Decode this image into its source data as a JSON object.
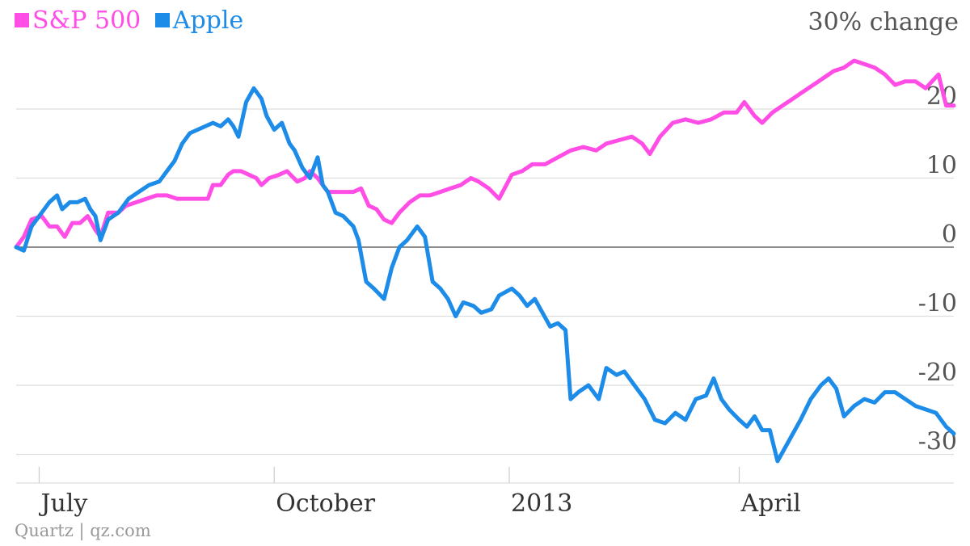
{
  "colors": {
    "sp500": "#ff4de6",
    "apple": "#1c8ce8",
    "grid": "#dddddd",
    "zero_line": "#666666",
    "tick_text": "#555555",
    "source_text": "#999999"
  },
  "source": "Quartz | qz.com",
  "chart_data": {
    "type": "line",
    "title": "",
    "ylabel": "30% change",
    "xlabel": "",
    "ylim": [
      -32,
      30
    ],
    "yticks": [
      {
        "value": 20,
        "label": "20"
      },
      {
        "value": 10,
        "label": "10"
      },
      {
        "value": 0,
        "label": "0"
      },
      {
        "value": -10,
        "label": "-10"
      },
      {
        "value": -20,
        "label": "-20"
      },
      {
        "value": -30,
        "label": "-30"
      }
    ],
    "xlim": [
      "2012-06-22",
      "2013-06-24"
    ],
    "xticks": [
      {
        "date": "2012-07-01",
        "label": "July"
      },
      {
        "date": "2012-10-01",
        "label": "October"
      },
      {
        "date": "2013-01-01",
        "label": "2013"
      },
      {
        "date": "2013-04-01",
        "label": "April"
      }
    ],
    "grid": true,
    "legend_position": "top-left",
    "series": [
      {
        "name": "S&P 500",
        "color": "#ff4de6",
        "points": [
          [
            "2012-06-22",
            0
          ],
          [
            "2012-06-25",
            1.5
          ],
          [
            "2012-06-28",
            4
          ],
          [
            "2012-07-02",
            4.5
          ],
          [
            "2012-07-05",
            3
          ],
          [
            "2012-07-08",
            3
          ],
          [
            "2012-07-11",
            1.5
          ],
          [
            "2012-07-14",
            3.5
          ],
          [
            "2012-07-17",
            3.5
          ],
          [
            "2012-07-20",
            4.5
          ],
          [
            "2012-07-23",
            2.5
          ],
          [
            "2012-07-25",
            1.5
          ],
          [
            "2012-07-28",
            5
          ],
          [
            "2012-08-01",
            5
          ],
          [
            "2012-08-04",
            6
          ],
          [
            "2012-08-08",
            6.5
          ],
          [
            "2012-08-12",
            7
          ],
          [
            "2012-08-16",
            7.5
          ],
          [
            "2012-08-20",
            7.5
          ],
          [
            "2012-08-24",
            7
          ],
          [
            "2012-08-28",
            7
          ],
          [
            "2012-09-01",
            7
          ],
          [
            "2012-09-05",
            7
          ],
          [
            "2012-09-07",
            9
          ],
          [
            "2012-09-10",
            9
          ],
          [
            "2012-09-13",
            10.5
          ],
          [
            "2012-09-15",
            11
          ],
          [
            "2012-09-18",
            11
          ],
          [
            "2012-09-21",
            10.5
          ],
          [
            "2012-09-24",
            10
          ],
          [
            "2012-09-26",
            9
          ],
          [
            "2012-09-29",
            10
          ],
          [
            "2012-10-03",
            10.5
          ],
          [
            "2012-10-06",
            11
          ],
          [
            "2012-10-10",
            9.5
          ],
          [
            "2012-10-13",
            10
          ],
          [
            "2012-10-15",
            11
          ],
          [
            "2012-10-18",
            10
          ],
          [
            "2012-10-20",
            9
          ],
          [
            "2012-10-22",
            8
          ],
          [
            "2012-10-25",
            8
          ],
          [
            "2012-10-28",
            8
          ],
          [
            "2012-11-01",
            8
          ],
          [
            "2012-11-04",
            8.5
          ],
          [
            "2012-11-07",
            6
          ],
          [
            "2012-11-10",
            5.5
          ],
          [
            "2012-11-13",
            4
          ],
          [
            "2012-11-16",
            3.5
          ],
          [
            "2012-11-19",
            5
          ],
          [
            "2012-11-23",
            6.5
          ],
          [
            "2012-11-27",
            7.5
          ],
          [
            "2012-12-01",
            7.5
          ],
          [
            "2012-12-05",
            8
          ],
          [
            "2012-12-09",
            8.5
          ],
          [
            "2012-12-13",
            9
          ],
          [
            "2012-12-17",
            10
          ],
          [
            "2012-12-20",
            9.5
          ],
          [
            "2012-12-24",
            8.5
          ],
          [
            "2012-12-28",
            7
          ],
          [
            "2013-01-02",
            10.5
          ],
          [
            "2013-01-06",
            11
          ],
          [
            "2013-01-10",
            12
          ],
          [
            "2013-01-15",
            12
          ],
          [
            "2013-01-20",
            13
          ],
          [
            "2013-01-25",
            14
          ],
          [
            "2013-01-30",
            14.5
          ],
          [
            "2013-02-04",
            14
          ],
          [
            "2013-02-08",
            15
          ],
          [
            "2013-02-13",
            15.5
          ],
          [
            "2013-02-18",
            16
          ],
          [
            "2013-02-22",
            15
          ],
          [
            "2013-02-25",
            13.5
          ],
          [
            "2013-03-01",
            16
          ],
          [
            "2013-03-06",
            18
          ],
          [
            "2013-03-11",
            18.5
          ],
          [
            "2013-03-16",
            18
          ],
          [
            "2013-03-21",
            18.5
          ],
          [
            "2013-03-26",
            19.5
          ],
          [
            "2013-03-31",
            19.5
          ],
          [
            "2013-04-03",
            21
          ],
          [
            "2013-04-07",
            19
          ],
          [
            "2013-04-10",
            18
          ],
          [
            "2013-04-14",
            19.5
          ],
          [
            "2013-04-18",
            20.5
          ],
          [
            "2013-04-22",
            21.5
          ],
          [
            "2013-04-26",
            22.5
          ],
          [
            "2013-04-30",
            23.5
          ],
          [
            "2013-05-04",
            24.5
          ],
          [
            "2013-05-08",
            25.5
          ],
          [
            "2013-05-12",
            26
          ],
          [
            "2013-05-16",
            27
          ],
          [
            "2013-05-20",
            26.5
          ],
          [
            "2013-05-24",
            26
          ],
          [
            "2013-05-28",
            25
          ],
          [
            "2013-06-01",
            23.5
          ],
          [
            "2013-06-05",
            24
          ],
          [
            "2013-06-09",
            24
          ],
          [
            "2013-06-13",
            23
          ],
          [
            "2013-06-18",
            25
          ],
          [
            "2013-06-21",
            20.5
          ],
          [
            "2013-06-24",
            20.5
          ]
        ]
      },
      {
        "name": "Apple",
        "color": "#1c8ce8",
        "points": [
          [
            "2012-06-22",
            0
          ],
          [
            "2012-06-25",
            -0.5
          ],
          [
            "2012-06-28",
            3
          ],
          [
            "2012-07-02",
            5
          ],
          [
            "2012-07-05",
            6.5
          ],
          [
            "2012-07-08",
            7.5
          ],
          [
            "2012-07-10",
            5.5
          ],
          [
            "2012-07-13",
            6.5
          ],
          [
            "2012-07-16",
            6.5
          ],
          [
            "2012-07-19",
            7
          ],
          [
            "2012-07-21",
            5.5
          ],
          [
            "2012-07-23",
            4.5
          ],
          [
            "2012-07-25",
            1
          ],
          [
            "2012-07-28",
            4
          ],
          [
            "2012-08-01",
            5
          ],
          [
            "2012-08-05",
            7
          ],
          [
            "2012-08-09",
            8
          ],
          [
            "2012-08-13",
            9
          ],
          [
            "2012-08-17",
            9.5
          ],
          [
            "2012-08-20",
            11
          ],
          [
            "2012-08-23",
            12.5
          ],
          [
            "2012-08-26",
            15
          ],
          [
            "2012-08-29",
            16.5
          ],
          [
            "2012-09-01",
            17
          ],
          [
            "2012-09-04",
            17.5
          ],
          [
            "2012-09-07",
            18
          ],
          [
            "2012-09-10",
            17.5
          ],
          [
            "2012-09-13",
            18.5
          ],
          [
            "2012-09-15",
            17.5
          ],
          [
            "2012-09-17",
            16
          ],
          [
            "2012-09-20",
            21
          ],
          [
            "2012-09-23",
            23
          ],
          [
            "2012-09-26",
            21.5
          ],
          [
            "2012-09-28",
            19
          ],
          [
            "2012-10-01",
            17
          ],
          [
            "2012-10-04",
            18
          ],
          [
            "2012-10-07",
            15
          ],
          [
            "2012-10-09",
            14
          ],
          [
            "2012-10-12",
            11.5
          ],
          [
            "2012-10-15",
            10
          ],
          [
            "2012-10-18",
            13
          ],
          [
            "2012-10-20",
            9
          ],
          [
            "2012-10-22",
            8
          ],
          [
            "2012-10-25",
            5
          ],
          [
            "2012-10-28",
            4.5
          ],
          [
            "2012-11-01",
            3
          ],
          [
            "2012-11-03",
            1
          ],
          [
            "2012-11-06",
            -5
          ],
          [
            "2012-11-09",
            -6
          ],
          [
            "2012-11-13",
            -7.5
          ],
          [
            "2012-11-16",
            -3
          ],
          [
            "2012-11-19",
            0
          ],
          [
            "2012-11-22",
            1
          ],
          [
            "2012-11-26",
            3
          ],
          [
            "2012-11-29",
            1.5
          ],
          [
            "2012-12-02",
            -5
          ],
          [
            "2012-12-05",
            -6
          ],
          [
            "2012-12-08",
            -7.5
          ],
          [
            "2012-12-11",
            -10
          ],
          [
            "2012-12-14",
            -8
          ],
          [
            "2012-12-18",
            -8.5
          ],
          [
            "2012-12-21",
            -9.5
          ],
          [
            "2012-12-25",
            -9
          ],
          [
            "2012-12-28",
            -7
          ],
          [
            "2013-01-02",
            -6
          ],
          [
            "2013-01-05",
            -7
          ],
          [
            "2013-01-08",
            -8.5
          ],
          [
            "2013-01-11",
            -7.5
          ],
          [
            "2013-01-14",
            -9.5
          ],
          [
            "2013-01-17",
            -11.5
          ],
          [
            "2013-01-20",
            -11
          ],
          [
            "2013-01-23",
            -12
          ],
          [
            "2013-01-25",
            -22
          ],
          [
            "2013-01-28",
            -21
          ],
          [
            "2013-02-01",
            -20
          ],
          [
            "2013-02-05",
            -22
          ],
          [
            "2013-02-08",
            -17.5
          ],
          [
            "2013-02-12",
            -18.5
          ],
          [
            "2013-02-15",
            -18
          ],
          [
            "2013-02-19",
            -20
          ],
          [
            "2013-02-23",
            -22
          ],
          [
            "2013-02-27",
            -25
          ],
          [
            "2013-03-03",
            -25.5
          ],
          [
            "2013-03-07",
            -24
          ],
          [
            "2013-03-11",
            -25
          ],
          [
            "2013-03-15",
            -22
          ],
          [
            "2013-03-19",
            -21.5
          ],
          [
            "2013-03-22",
            -19
          ],
          [
            "2013-03-25",
            -22
          ],
          [
            "2013-03-28",
            -23.5
          ],
          [
            "2013-04-01",
            -25
          ],
          [
            "2013-04-04",
            -26
          ],
          [
            "2013-04-07",
            -24.5
          ],
          [
            "2013-04-10",
            -26.5
          ],
          [
            "2013-04-13",
            -26.5
          ],
          [
            "2013-04-16",
            -31
          ],
          [
            "2013-04-19",
            -29
          ],
          [
            "2013-04-22",
            -27
          ],
          [
            "2013-04-25",
            -25
          ],
          [
            "2013-04-29",
            -22
          ],
          [
            "2013-05-03",
            -20
          ],
          [
            "2013-05-06",
            -19
          ],
          [
            "2013-05-09",
            -20.5
          ],
          [
            "2013-05-12",
            -24.5
          ],
          [
            "2013-05-16",
            -23
          ],
          [
            "2013-05-20",
            -22
          ],
          [
            "2013-05-24",
            -22.5
          ],
          [
            "2013-05-28",
            -21
          ],
          [
            "2013-06-01",
            -21
          ],
          [
            "2013-06-05",
            -22
          ],
          [
            "2013-06-09",
            -23
          ],
          [
            "2013-06-13",
            -23.5
          ],
          [
            "2013-06-17",
            -24
          ],
          [
            "2013-06-21",
            -26
          ],
          [
            "2013-06-24",
            -27
          ]
        ]
      }
    ]
  }
}
